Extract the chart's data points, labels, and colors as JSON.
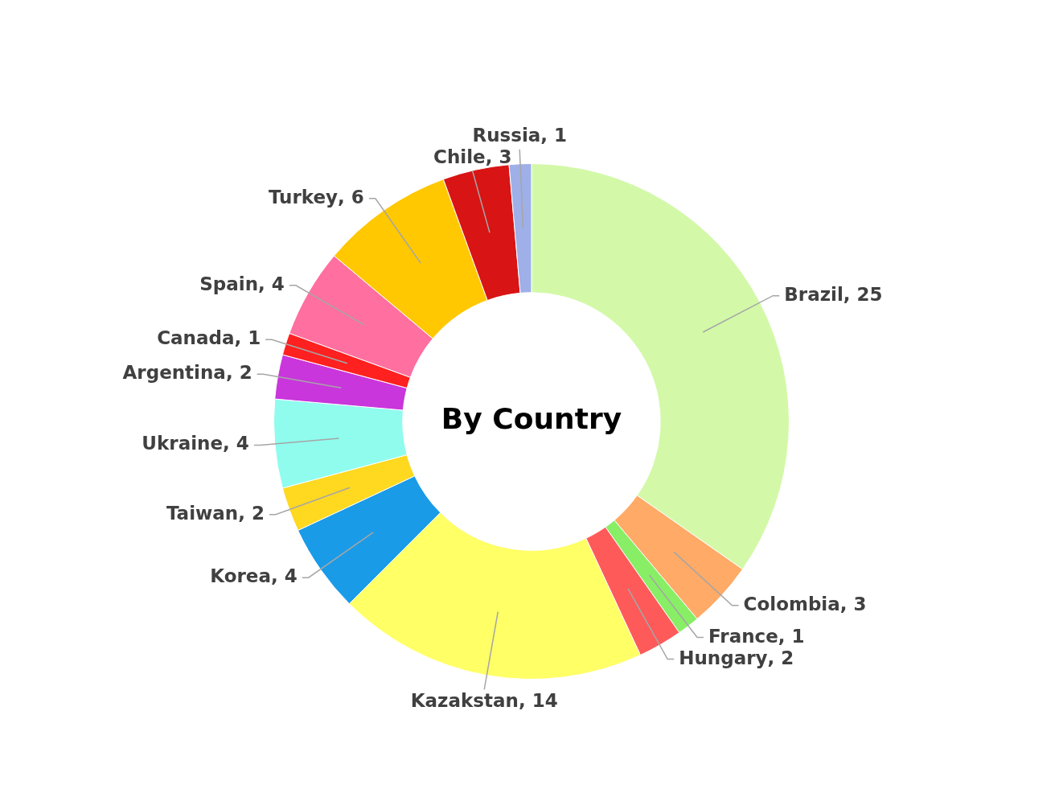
{
  "chart_data": {
    "type": "donut",
    "title": "By Country",
    "categories": [
      "Brazil",
      "Colombia",
      "France",
      "Hungary",
      "Kazakstan",
      "Korea",
      "Taiwan",
      "Ukraine",
      "Argentina",
      "Canada",
      "Spain",
      "Turkey",
      "Chile",
      "Russia"
    ],
    "values": [
      25,
      3,
      1,
      2,
      14,
      4,
      2,
      4,
      2,
      1,
      4,
      6,
      3,
      1
    ],
    "colors": [
      "#d3f9a8",
      "#ffaa66",
      "#88ee66",
      "#ff5a5a",
      "#ffff66",
      "#1a9be8",
      "#ffd820",
      "#8ffcee",
      "#c936dc",
      "#ff2020",
      "#ff6f9f",
      "#ffc800",
      "#d81414",
      "#9fafe8"
    ],
    "value_labels": [
      ", 25",
      ", 3",
      ", 1",
      ", 2",
      ", 14",
      ", 4",
      ", 2",
      ", 4",
      ", 2",
      ", 1",
      ", 4",
      ", 6",
      ", 3",
      ", 1"
    ],
    "legend": false
  }
}
